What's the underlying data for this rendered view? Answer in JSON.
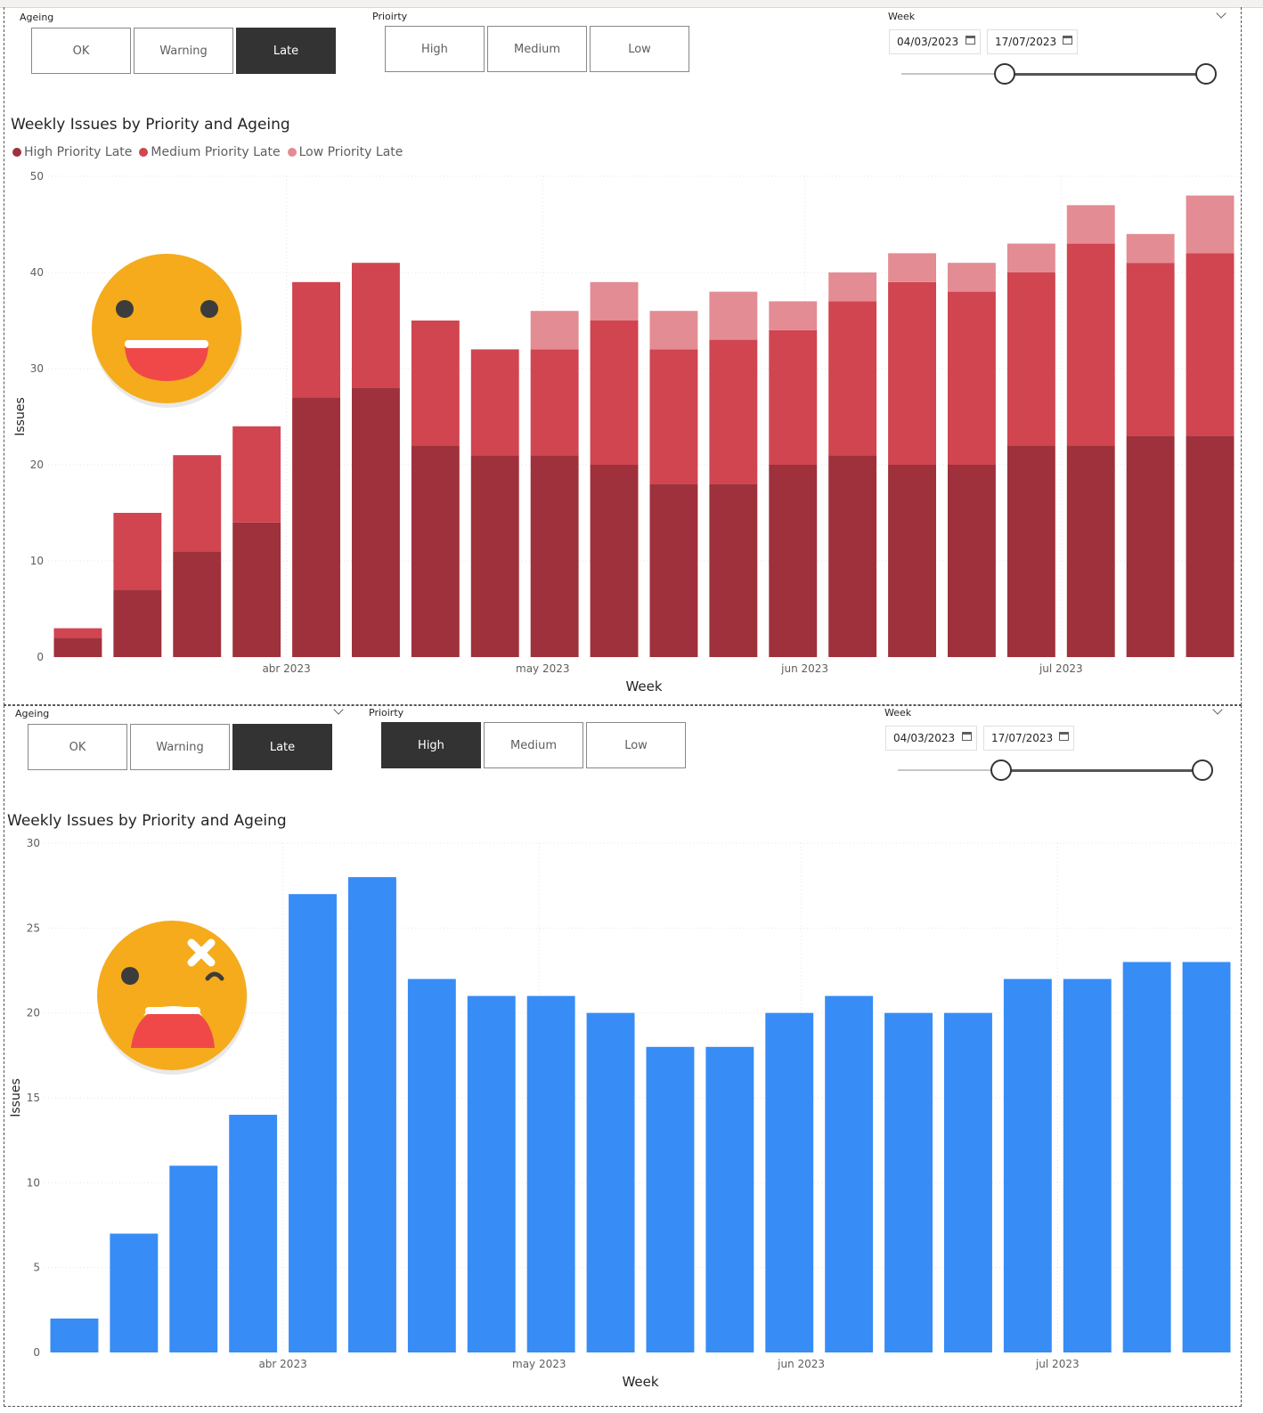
{
  "slicers": [
    {
      "ageing_title": "Ageing",
      "ageing_options": [
        {
          "label": "OK",
          "selected": false
        },
        {
          "label": "Warning",
          "selected": false
        },
        {
          "label": "Late",
          "selected": true
        }
      ],
      "priority_title": "Prioirty",
      "priority_options": [
        {
          "label": "High",
          "selected": false
        },
        {
          "label": "Medium",
          "selected": false
        },
        {
          "label": "Low",
          "selected": false
        }
      ],
      "week_title": "Week",
      "start_date": "04/03/2023",
      "end_date": "17/07/2023"
    },
    {
      "ageing_title": "Ageing",
      "ageing_options": [
        {
          "label": "OK",
          "selected": false
        },
        {
          "label": "Warning",
          "selected": false
        },
        {
          "label": "Late",
          "selected": true
        }
      ],
      "priority_title": "Prioirty",
      "priority_options": [
        {
          "label": "High",
          "selected": true
        },
        {
          "label": "Medium",
          "selected": false
        },
        {
          "label": "Low",
          "selected": false
        }
      ],
      "week_title": "Week",
      "start_date": "04/03/2023",
      "end_date": "17/07/2023"
    }
  ],
  "chart_data": [
    {
      "type": "bar",
      "stacked": true,
      "title": "Weekly Issues by Priority and Ageing",
      "xlabel": "Week",
      "ylabel": "Issues",
      "ylim": [
        0,
        50
      ],
      "yticks": [
        0,
        10,
        20,
        30,
        40,
        50
      ],
      "x_tick_labels": [
        {
          "label": "abr 2023",
          "index": 4
        },
        {
          "label": "may 2023",
          "index": 8.3
        },
        {
          "label": "jun 2023",
          "index": 12.7
        },
        {
          "label": "jul 2023",
          "index": 17
        }
      ],
      "legend_position": "top-left",
      "grid": true,
      "series": [
        {
          "name": "High Priority Late",
          "color": "#9e313b",
          "values": [
            2,
            7,
            11,
            14,
            27,
            28,
            22,
            21,
            21,
            20,
            18,
            18,
            20,
            21,
            20,
            20,
            22,
            22,
            23,
            23
          ]
        },
        {
          "name": "Medium Priority Late",
          "color": "#d0454f",
          "values": [
            1,
            8,
            10,
            10,
            12,
            13,
            13,
            11,
            11,
            15,
            14,
            15,
            14,
            16,
            19,
            18,
            18,
            21,
            18,
            19
          ]
        },
        {
          "name": "Low Priority Late",
          "color": "#e38c93",
          "values": [
            0,
            0,
            0,
            0,
            0,
            0,
            0,
            0,
            4,
            4,
            4,
            5,
            3,
            3,
            3,
            3,
            3,
            4,
            3,
            6
          ]
        }
      ],
      "emoji": "smile-face-icon"
    },
    {
      "type": "bar",
      "title": "Weekly Issues by Priority and Ageing",
      "xlabel": "Week",
      "ylabel": "Issues",
      "ylim": [
        0,
        30
      ],
      "yticks": [
        0,
        5,
        10,
        15,
        20,
        25,
        30
      ],
      "x_tick_labels": [
        {
          "label": "abr 2023",
          "index": 4
        },
        {
          "label": "may 2023",
          "index": 8.3
        },
        {
          "label": "jun 2023",
          "index": 12.7
        },
        {
          "label": "jul 2023",
          "index": 17
        }
      ],
      "grid": true,
      "series": [
        {
          "color": "#378cf6",
          "values": [
            2,
            7,
            11,
            14,
            27,
            28,
            22,
            21,
            21,
            20,
            18,
            18,
            20,
            21,
            20,
            20,
            22,
            22,
            23,
            23
          ]
        }
      ],
      "emoji": "dizzy-face-icon"
    }
  ]
}
